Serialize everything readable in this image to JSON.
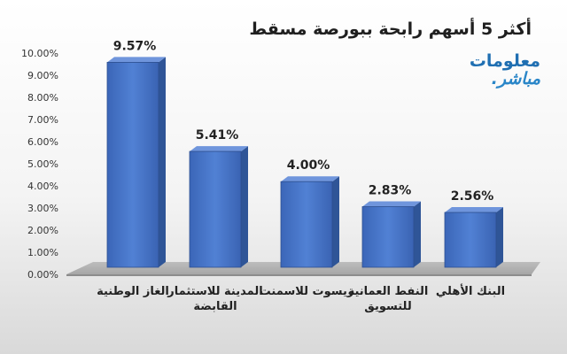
{
  "chart_data": {
    "type": "bar",
    "title": "أكثر 5 أسهم رابحة ببورصة مسقط",
    "categories": [
      "الغاز الوطنية",
      "المدينة للاستثمار القابضة",
      "ريسوت للاسمنت",
      "النفط العمانية للتسويق",
      "البنك الأهلي"
    ],
    "values": [
      9.57,
      5.41,
      4.0,
      2.83,
      2.56
    ],
    "data_labels": [
      "9.57%",
      "5.41%",
      "4.00%",
      "2.83%",
      "2.56%"
    ],
    "y_ticks": [
      "0.00%",
      "1.00%",
      "2.00%",
      "3.00%",
      "4.00%",
      "5.00%",
      "6.00%",
      "7.00%",
      "8.00%",
      "9.00%",
      "10.00%"
    ],
    "ylim": [
      0,
      10
    ],
    "grid": false,
    "style": "3d-column",
    "bar_color": "#4472c4"
  },
  "brand": {
    "line1": "معلومات",
    "line2": "مباشر."
  }
}
